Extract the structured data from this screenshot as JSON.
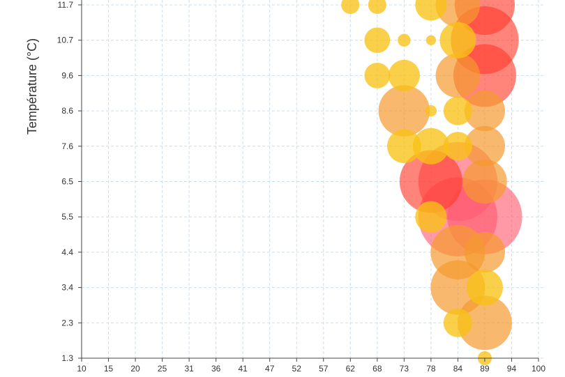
{
  "chart_data": {
    "type": "scatter",
    "ylabel": "Température (°C)",
    "xlabel": "",
    "x_ticks": [
      "10",
      "15",
      "20",
      "25",
      "31",
      "36",
      "41",
      "47",
      "52",
      "57",
      "62",
      "68",
      "73",
      "78",
      "84",
      "89",
      "94",
      "100"
    ],
    "y_ticks": [
      "1.3",
      "2.3",
      "3.4",
      "4.4",
      "5.5",
      "6.5",
      "7.6",
      "8.6",
      "9.6",
      "10.7",
      "11.7"
    ],
    "xlim": [
      10,
      100
    ],
    "ylim": [
      1.3,
      12.3
    ],
    "grid": true,
    "bubbles": [
      {
        "x": 62,
        "y": 11.7,
        "size": 1
      },
      {
        "x": 68,
        "y": 11.7,
        "size": 1
      },
      {
        "x": 78,
        "y": 11.7,
        "size": 3
      },
      {
        "x": 84,
        "y": 11.7,
        "size": 6
      },
      {
        "x": 89,
        "y": 11.7,
        "size": 11
      },
      {
        "x": 68,
        "y": 10.7,
        "size": 2
      },
      {
        "x": 73,
        "y": 10.7,
        "size": 0.5
      },
      {
        "x": 78,
        "y": 10.7,
        "size": 0.3
      },
      {
        "x": 84,
        "y": 10.7,
        "size": 4
      },
      {
        "x": 89,
        "y": 10.7,
        "size": 14
      },
      {
        "x": 68,
        "y": 9.6,
        "size": 2
      },
      {
        "x": 73,
        "y": 9.6,
        "size": 3
      },
      {
        "x": 84,
        "y": 9.6,
        "size": 6
      },
      {
        "x": 89,
        "y": 9.6,
        "size": 12
      },
      {
        "x": 73,
        "y": 8.6,
        "size": 8
      },
      {
        "x": 78,
        "y": 8.6,
        "size": 0.4
      },
      {
        "x": 84,
        "y": 8.6,
        "size": 2.5
      },
      {
        "x": 89,
        "y": 8.6,
        "size": 5
      },
      {
        "x": 73,
        "y": 7.6,
        "size": 3.5
      },
      {
        "x": 78,
        "y": 7.6,
        "size": 4
      },
      {
        "x": 84,
        "y": 7.6,
        "size": 2.5
      },
      {
        "x": 89,
        "y": 7.6,
        "size": 5
      },
      {
        "x": 78,
        "y": 6.5,
        "size": 12
      },
      {
        "x": 84,
        "y": 6.5,
        "size": 19
      },
      {
        "x": 89,
        "y": 6.5,
        "size": 6
      },
      {
        "x": 78,
        "y": 5.5,
        "size": 3
      },
      {
        "x": 84,
        "y": 5.5,
        "size": 19
      },
      {
        "x": 89,
        "y": 5.5,
        "size": 17
      },
      {
        "x": 84,
        "y": 4.4,
        "size": 9
      },
      {
        "x": 89,
        "y": 4.4,
        "size": 5
      },
      {
        "x": 84,
        "y": 3.4,
        "size": 9
      },
      {
        "x": 89,
        "y": 3.4,
        "size": 4
      },
      {
        "x": 84,
        "y": 2.3,
        "size": 2.5
      },
      {
        "x": 89,
        "y": 2.3,
        "size": 9
      },
      {
        "x": 89,
        "y": 1.3,
        "size": 0.6
      }
    ],
    "colors": {
      "grid": "#c9dff0",
      "axis": "#444444",
      "small": "#f8c216",
      "medium": "#f59a2f",
      "large": "#ff3a2a",
      "xlarge": "#ff5a70"
    }
  }
}
